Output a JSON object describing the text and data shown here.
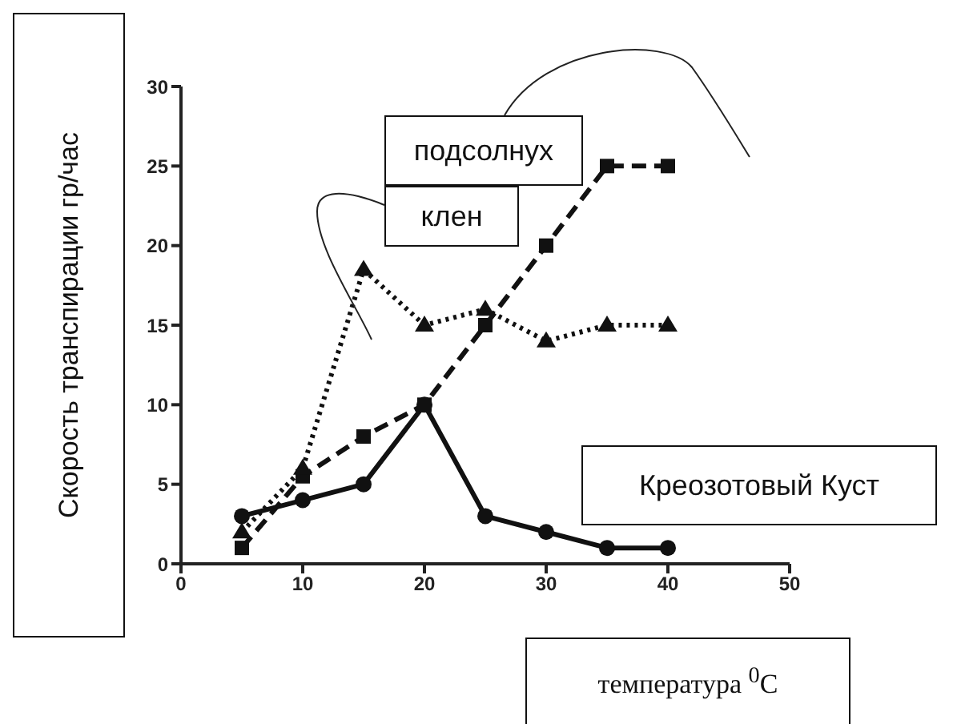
{
  "chart_data": {
    "type": "line",
    "xlabel": "температура $^{0}$C",
    "ylabel": "Скорость транспирации гр/час",
    "x": [
      5,
      10,
      15,
      20,
      25,
      30,
      35,
      40
    ],
    "series": [
      {
        "name": "подсолнух",
        "color": "#111111",
        "marker": "square",
        "line_style": "dashed",
        "values": [
          1,
          5.5,
          8,
          10,
          15,
          20,
          25,
          25
        ]
      },
      {
        "name": "клен",
        "color": "#111111",
        "marker": "triangle",
        "line_style": "dotted",
        "values": [
          2,
          6,
          18.5,
          15,
          16,
          14,
          15,
          15
        ]
      },
      {
        "name": "Креозотовый Куст",
        "color": "#111111",
        "marker": "circle",
        "line_style": "solid",
        "values": [
          3,
          4,
          5,
          10,
          3,
          2,
          1,
          1
        ]
      }
    ],
    "xlim": [
      0,
      50
    ],
    "xticks": [
      0,
      10,
      20,
      30,
      40,
      50
    ],
    "ylim": [
      0,
      30
    ],
    "yticks": [
      0,
      5,
      10,
      15,
      20,
      25,
      30
    ],
    "grid": false,
    "legend": false
  }
}
